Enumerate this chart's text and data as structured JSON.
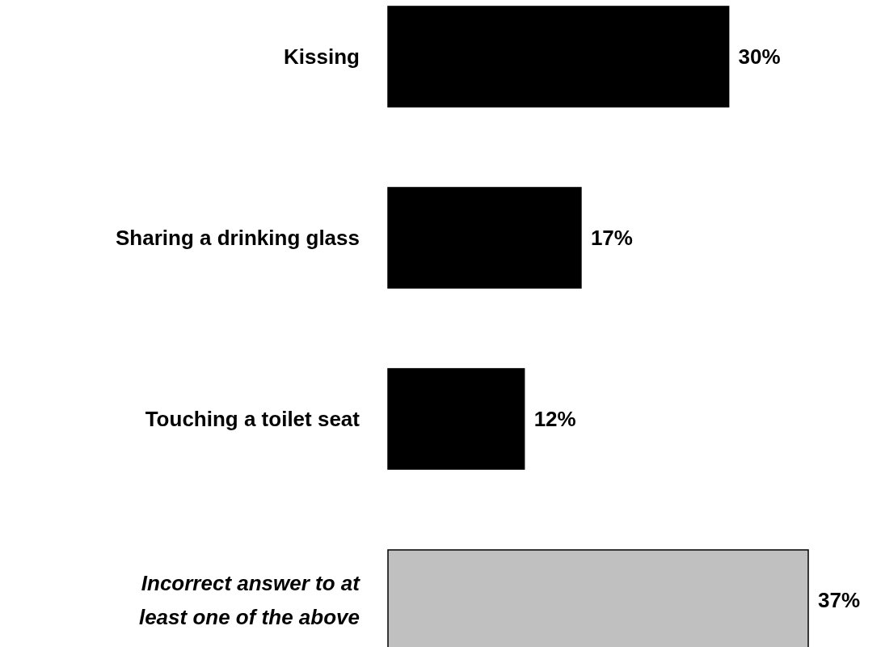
{
  "chart_data": {
    "type": "bar",
    "orientation": "horizontal",
    "categories": [
      "Kissing",
      "Sharing a drinking glass",
      "Touching a toilet seat",
      "Incorrect answer to at least one of the above"
    ],
    "values": [
      30,
      17,
      12,
      37
    ],
    "colors": [
      "#000000",
      "#000000",
      "#000000",
      "#c0c0c0"
    ],
    "value_labels": [
      "30%",
      "17%",
      "12%",
      "37%"
    ]
  }
}
